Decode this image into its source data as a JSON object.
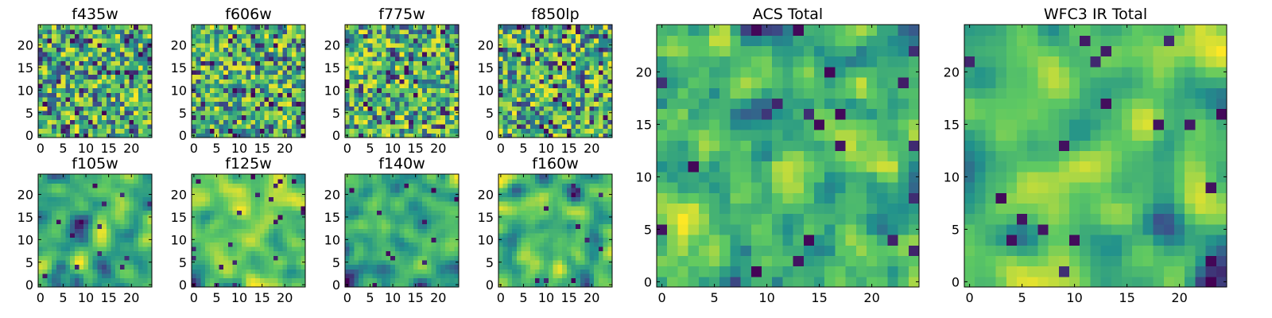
{
  "figure": {
    "colormap": [
      "#440154",
      "#3b528b",
      "#21918c",
      "#5ec962",
      "#fde725"
    ]
  },
  "chart_data": [
    {
      "type": "heatmap",
      "title": "f435w",
      "xticks": [
        "0",
        "5",
        "10",
        "15",
        "20"
      ],
      "yticks": [
        "0",
        "5",
        "10",
        "15",
        "20"
      ],
      "xlim": [
        0,
        24
      ],
      "ylim": [
        0,
        24
      ],
      "grid_size": 25,
      "cmap": "viridis",
      "values_note": "pixel values not labeled"
    },
    {
      "type": "heatmap",
      "title": "f606w",
      "xticks": [
        "0",
        "5",
        "10",
        "15",
        "20"
      ],
      "yticks": [
        "0",
        "5",
        "10",
        "15",
        "20"
      ],
      "xlim": [
        0,
        24
      ],
      "ylim": [
        0,
        24
      ],
      "grid_size": 25,
      "cmap": "viridis"
    },
    {
      "type": "heatmap",
      "title": "f775w",
      "xticks": [
        "0",
        "5",
        "10",
        "15",
        "20"
      ],
      "yticks": [
        "0",
        "5",
        "10",
        "15",
        "20"
      ],
      "xlim": [
        0,
        24
      ],
      "ylim": [
        0,
        24
      ],
      "grid_size": 25,
      "cmap": "viridis"
    },
    {
      "type": "heatmap",
      "title": "f850lp",
      "xticks": [
        "0",
        "5",
        "10",
        "15",
        "20"
      ],
      "yticks": [
        "0",
        "5",
        "10",
        "15",
        "20"
      ],
      "xlim": [
        0,
        24
      ],
      "ylim": [
        0,
        24
      ],
      "grid_size": 25,
      "cmap": "viridis"
    },
    {
      "type": "heatmap",
      "title": "f105w",
      "xticks": [
        "0",
        "5",
        "10",
        "15",
        "20"
      ],
      "yticks": [
        "0",
        "5",
        "10",
        "15",
        "20"
      ],
      "xlim": [
        0,
        24
      ],
      "ylim": [
        0,
        24
      ],
      "grid_size": 25,
      "cmap": "viridis"
    },
    {
      "type": "heatmap",
      "title": "f125w",
      "xticks": [
        "0",
        "5",
        "10",
        "15",
        "20"
      ],
      "yticks": [
        "0",
        "5",
        "10",
        "15",
        "20"
      ],
      "xlim": [
        0,
        24
      ],
      "ylim": [
        0,
        24
      ],
      "grid_size": 25,
      "cmap": "viridis"
    },
    {
      "type": "heatmap",
      "title": "f140w",
      "xticks": [
        "0",
        "5",
        "10",
        "15",
        "20"
      ],
      "yticks": [
        "0",
        "5",
        "10",
        "15",
        "20"
      ],
      "xlim": [
        0,
        24
      ],
      "ylim": [
        0,
        24
      ],
      "grid_size": 25,
      "cmap": "viridis"
    },
    {
      "type": "heatmap",
      "title": "f160w",
      "xticks": [
        "0",
        "5",
        "10",
        "15",
        "20"
      ],
      "yticks": [
        "0",
        "5",
        "10",
        "15",
        "20"
      ],
      "xlim": [
        0,
        24
      ],
      "ylim": [
        0,
        24
      ],
      "grid_size": 25,
      "cmap": "viridis"
    },
    {
      "type": "heatmap",
      "title": "ACS Total",
      "xticks": [
        "0",
        "5",
        "10",
        "15",
        "20"
      ],
      "yticks": [
        "0",
        "5",
        "10",
        "15",
        "20"
      ],
      "xlim": [
        0,
        24
      ],
      "ylim": [
        0,
        24
      ],
      "grid_size": 25,
      "cmap": "viridis"
    },
    {
      "type": "heatmap",
      "title": "WFC3 IR Total",
      "xticks": [
        "0",
        "5",
        "10",
        "15",
        "20"
      ],
      "yticks": [
        "0",
        "5",
        "10",
        "15",
        "20"
      ],
      "xlim": [
        0,
        24
      ],
      "ylim": [
        0,
        24
      ],
      "grid_size": 25,
      "cmap": "viridis"
    }
  ]
}
